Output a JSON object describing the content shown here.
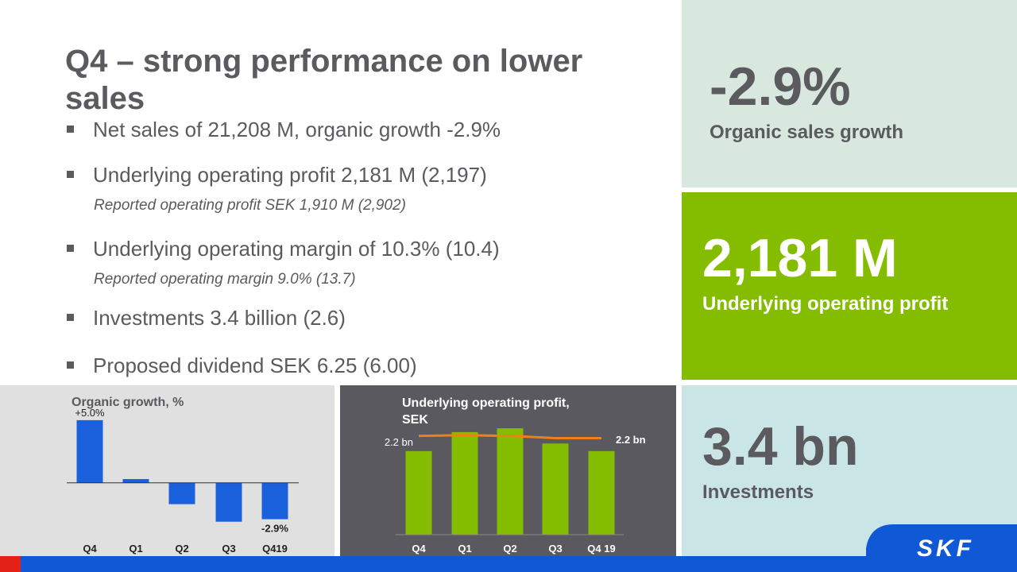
{
  "header": {
    "title_lines": [
      "Q4 – strong performance on lower",
      "sales"
    ]
  },
  "bullets": [
    {
      "text": "Net sales of 21,208 M, organic growth -2.9%"
    },
    {
      "text": "Underlying operating profit 2,181 M (2,197)",
      "note": "Reported operating profit SEK 1,910 M (2,902)"
    },
    {
      "text": "Underlying operating margin of 10.3% (10.4)",
      "note": "Reported operating margin 9.0% (13.7)"
    },
    {
      "text": "Investments 3.4 billion (2.6)"
    },
    {
      "text": "Proposed dividend SEK 6.25 (6.00)"
    }
  ],
  "kpis": [
    {
      "value": "-2.9%",
      "label": "Organic sales growth"
    },
    {
      "value": "2,181 M",
      "label": "Underlying operating profit"
    },
    {
      "value": "3.4 bn",
      "label": "Investments"
    }
  ],
  "logo": "SKF",
  "chart_data": [
    {
      "type": "bar",
      "title": "Organic growth, %",
      "categories": [
        "Q4",
        "Q1",
        "Q2",
        "Q3",
        "Q419"
      ],
      "values": [
        5.0,
        0.3,
        -1.7,
        -3.1,
        -2.9
      ],
      "value_labels": [
        "+5.0%",
        null,
        null,
        null,
        "-2.9%"
      ],
      "color": "#1a5fdb",
      "ylim": [
        -3.5,
        5.5
      ]
    },
    {
      "type": "bar",
      "title_lines": [
        "Underlying operating profit,",
        "SEK"
      ],
      "categories": [
        "Q4",
        "Q1",
        "Q2",
        "Q3",
        "Q4 19"
      ],
      "values": [
        2.2,
        2.7,
        2.8,
        2.4,
        2.2
      ],
      "value_labels": [
        "2.2 bn",
        null,
        null,
        null,
        "2.2 bn"
      ],
      "color": "#84bd00",
      "ylim": [
        0,
        3.2
      ],
      "series": [
        {
          "color": "#f07f16",
          "values": [
            2.6,
            2.62,
            2.6,
            2.54,
            2.54
          ]
        }
      ]
    }
  ]
}
